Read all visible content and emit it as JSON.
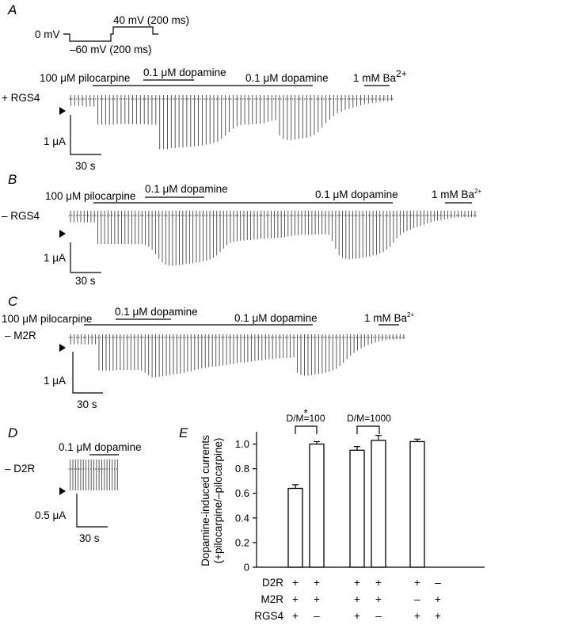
{
  "panels": {
    "A": {
      "letter": "A",
      "protocol": {
        "hold": "0 mV",
        "step1": "–60 mV (200 ms)",
        "step2": "40 mV (200 ms)"
      },
      "row_label": "+ RGS4",
      "labels": {
        "pilocarpine": "100 μM pilocarpine",
        "dopamine1": "0.1 μM dopamine",
        "dopamine2": "0.1 μM dopamine",
        "barium": "1 mM Ba",
        "barium_sup": "2+"
      },
      "scale": {
        "current": "1 μA",
        "time": "30 s"
      },
      "amplitudes": [
        0.12,
        0.12,
        0.12,
        0.12,
        0.13,
        0.13,
        0.13,
        0.45,
        0.45,
        0.45,
        0.45,
        0.45,
        0.44,
        0.44,
        0.44,
        0.44,
        0.44,
        0.44,
        0.44,
        0.44,
        0.45,
        0.45,
        0.45,
        0.88,
        0.88,
        0.88,
        0.86,
        0.86,
        0.85,
        0.85,
        0.84,
        0.84,
        0.83,
        0.82,
        0.81,
        0.8,
        0.79,
        0.77,
        0.75,
        0.7,
        0.64,
        0.58,
        0.52,
        0.48,
        0.46,
        0.45,
        0.45,
        0.44,
        0.44,
        0.43,
        0.42,
        0.4,
        0.38,
        0.37,
        0.64,
        0.7,
        0.72,
        0.72,
        0.71,
        0.7,
        0.69,
        0.68,
        0.66,
        0.63,
        0.58,
        0.5,
        0.42,
        0.36,
        0.3,
        0.25,
        0.22,
        0.19,
        0.17,
        0.15,
        0.13,
        0.11,
        0.09,
        0.08,
        0.07,
        0.06,
        0.05,
        0.04,
        0.04,
        0.03
      ]
    },
    "B": {
      "letter": "B",
      "row_label": "– RGS4",
      "labels": {
        "pilocarpine": "100 μM pilocarpine",
        "dopamine1": "0.1 μM dopamine",
        "dopamine2": "0.1 μM dopamine",
        "barium": "1 mM Ba",
        "barium_sup": "2+"
      },
      "scale": {
        "current": "1 μA",
        "time": "30 s"
      },
      "amplitudes": [
        0.12,
        0.12,
        0.12,
        0.12,
        0.12,
        0.12,
        0.12,
        0.12,
        0.5,
        0.5,
        0.5,
        0.5,
        0.5,
        0.5,
        0.5,
        0.5,
        0.5,
        0.5,
        0.5,
        0.5,
        0.5,
        0.5,
        0.52,
        0.55,
        0.6,
        0.68,
        0.76,
        0.82,
        0.86,
        0.88,
        0.88,
        0.87,
        0.87,
        0.86,
        0.85,
        0.85,
        0.84,
        0.83,
        0.82,
        0.8,
        0.79,
        0.77,
        0.74,
        0.7,
        0.64,
        0.58,
        0.52,
        0.48,
        0.46,
        0.45,
        0.44,
        0.44,
        0.43,
        0.43,
        0.42,
        0.42,
        0.41,
        0.41,
        0.4,
        0.4,
        0.4,
        0.39,
        0.39,
        0.38,
        0.37,
        0.36,
        0.35,
        0.35,
        0.34,
        0.34,
        0.34,
        0.34,
        0.33,
        0.33,
        0.33,
        0.33,
        0.34,
        0.45,
        0.58,
        0.7,
        0.74,
        0.76,
        0.77,
        0.76,
        0.76,
        0.75,
        0.74,
        0.73,
        0.72,
        0.7,
        0.69,
        0.67,
        0.64,
        0.6,
        0.55,
        0.48,
        0.4,
        0.34,
        0.3,
        0.27,
        0.25,
        0.22,
        0.2,
        0.18,
        0.16,
        0.14,
        0.12,
        0.1,
        0.09,
        0.08,
        0.07,
        0.06,
        0.05,
        0.04,
        0.04,
        0.03,
        0.03,
        0.03,
        0.03,
        0.03
      ]
    },
    "C": {
      "letter": "C",
      "row_label": "– M2R",
      "labels": {
        "pilocarpine": "100 μM pilocarpine",
        "dopamine1": "0.1 μM dopamine",
        "dopamine2": "0.1 μM dopamine",
        "barium": "1 mM Ba",
        "barium_sup": "2+"
      },
      "scale": {
        "current": "1 μA",
        "time": "30 s"
      },
      "amplitudes": [
        0.12,
        0.12,
        0.12,
        0.12,
        0.12,
        0.12,
        0.12,
        0.12,
        0.58,
        0.58,
        0.58,
        0.58,
        0.58,
        0.57,
        0.57,
        0.57,
        0.57,
        0.57,
        0.57,
        0.57,
        0.58,
        0.62,
        0.66,
        0.7,
        0.7,
        0.69,
        0.68,
        0.67,
        0.66,
        0.65,
        0.64,
        0.63,
        0.62,
        0.6,
        0.59,
        0.57,
        0.56,
        0.54,
        0.53,
        0.52,
        0.51,
        0.51,
        0.5,
        0.49,
        0.48,
        0.47,
        0.46,
        0.45,
        0.44,
        0.44,
        0.43,
        0.42,
        0.41,
        0.4,
        0.4,
        0.39,
        0.38,
        0.38,
        0.37,
        0.37,
        0.36,
        0.36,
        0.36,
        0.35,
        0.62,
        0.66,
        0.67,
        0.67,
        0.66,
        0.65,
        0.64,
        0.63,
        0.62,
        0.6,
        0.58,
        0.55,
        0.5,
        0.44,
        0.38,
        0.32,
        0.27,
        0.23,
        0.19,
        0.16,
        0.13,
        0.11,
        0.09,
        0.07,
        0.06,
        0.05,
        0.04,
        0.04,
        0.03,
        0.03,
        0.03
      ]
    },
    "D": {
      "letter": "D",
      "row_label": "– D2R",
      "labels": {
        "dopamine": "0.1 μM dopamine"
      },
      "scale": {
        "current": "0.5 μA",
        "time": "30 s"
      },
      "amplitudes": [
        0.42,
        0.42,
        0.42,
        0.42,
        0.42,
        0.42,
        0.42,
        0.42,
        0.42,
        0.42,
        0.42,
        0.42,
        0.42,
        0.42,
        0.42,
        0.42,
        0.42,
        0.42,
        0.42
      ]
    },
    "E": {
      "letter": "E",
      "groups": [
        {
          "label": "D2R",
          "signs": [
            "+",
            "+",
            "+",
            "+",
            "+",
            "–"
          ]
        },
        {
          "label": "M2R",
          "signs": [
            "+",
            "+",
            "+",
            "+",
            "–",
            "+"
          ]
        },
        {
          "label": "RGS4",
          "signs": [
            "+",
            "–",
            "+",
            "–",
            "+",
            "+"
          ]
        }
      ],
      "brackets": [
        {
          "text": "D/M=100",
          "star": "*"
        },
        {
          "text": "D/M=1000"
        }
      ]
    }
  },
  "chart_data": {
    "type": "bar",
    "title": "",
    "ylabel": "Dopamine-induced currents (+pilocarpine/–pilocarpine)",
    "ylabel_lines": [
      "Dopamine-induced currents",
      "(+pilocarpine/–pilocarpine)"
    ],
    "ylim": [
      0,
      1.1
    ],
    "yticks": [
      "0",
      "0.2",
      "0.4",
      "0.6",
      "0.8",
      "1.0"
    ],
    "categories": [
      "D2R+ M2R+ RGS4+",
      "D2R+ M2R+ RGS4–",
      "D2R+ M2R+ RGS4+",
      "D2R+ M2R+ RGS4–",
      "D2R+ M2R– RGS4+",
      "D2R– M2R+ RGS4+"
    ],
    "values": [
      0.64,
      1.0,
      0.95,
      1.03,
      1.02,
      0
    ],
    "errors": [
      0.03,
      0.02,
      0.03,
      0.04,
      0.02,
      0
    ],
    "grid": false,
    "legend": "none"
  }
}
